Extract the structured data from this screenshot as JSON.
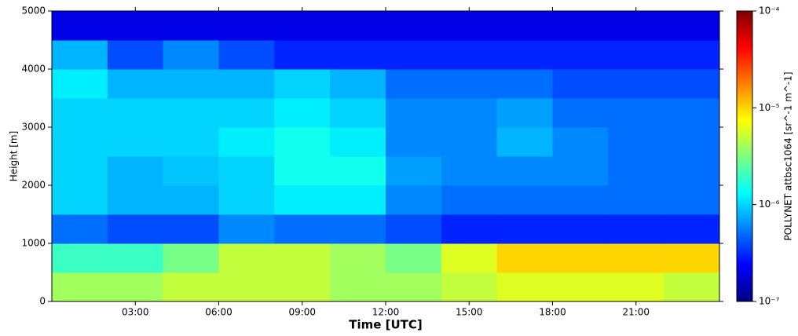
{
  "chart_data": {
    "type": "heatmap",
    "xlabel": "Time [UTC]",
    "ylabel": "Height [m]",
    "colorbar_label": "POLLYNET attbsc1064 [sr^-1 m^-1]",
    "xlim": [
      0,
      24
    ],
    "xticks": [
      {
        "value": 3,
        "label": "03:00"
      },
      {
        "value": 6,
        "label": "06:00"
      },
      {
        "value": 9,
        "label": "09:00"
      },
      {
        "value": 12,
        "label": "12:00"
      },
      {
        "value": 15,
        "label": "15:00"
      },
      {
        "value": 18,
        "label": "18:00"
      },
      {
        "value": 21,
        "label": "21:00"
      }
    ],
    "ylim": [
      0,
      5000
    ],
    "yticks": [
      0,
      1000,
      2000,
      3000,
      4000,
      5000
    ],
    "clim": [
      1e-07,
      0.0001
    ],
    "clog": true,
    "cticks": [
      {
        "value": 1e-07,
        "label": "10⁻⁷"
      },
      {
        "value": 1e-06,
        "label": "10⁻⁶"
      },
      {
        "value": 1e-05,
        "label": "10⁻⁵"
      },
      {
        "value": 0.0001,
        "label": "10⁻⁴"
      }
    ],
    "colormap": "jet",
    "xbins": [
      0,
      2,
      4,
      6,
      8,
      10,
      12,
      14,
      16,
      18,
      20,
      22,
      24
    ],
    "ybins": [
      0,
      500,
      1000,
      1500,
      2000,
      2500,
      3000,
      3500,
      4000,
      4500,
      5000
    ],
    "values": [
      [
        4e-06,
        4e-06,
        5e-06,
        5e-06,
        5e-06,
        4e-06,
        4e-06,
        5e-06,
        6e-06,
        6e-06,
        6e-06,
        5e-06
      ],
      [
        2e-06,
        2e-06,
        3e-06,
        5e-06,
        5e-06,
        4e-06,
        3e-06,
        6e-06,
        1e-05,
        1e-05,
        1e-05,
        1e-05
      ],
      [
        5e-07,
        4e-07,
        4e-07,
        6e-07,
        5e-07,
        5e-07,
        4e-07,
        3e-07,
        3e-07,
        3e-07,
        3e-07,
        3e-07
      ],
      [
        1e-06,
        8e-07,
        8e-07,
        1e-06,
        1.2e-06,
        1.2e-06,
        6e-07,
        5e-07,
        5e-07,
        5e-07,
        5e-07,
        5e-07
      ],
      [
        1e-06,
        8e-07,
        9e-07,
        1e-06,
        1.5e-06,
        1.5e-06,
        7e-07,
        6e-07,
        6e-07,
        6e-07,
        5e-07,
        5e-07
      ],
      [
        1e-06,
        1e-06,
        1e-06,
        1.2e-06,
        1.5e-06,
        1.2e-06,
        6e-07,
        6e-07,
        8e-07,
        6e-07,
        5e-07,
        5e-07
      ],
      [
        1e-06,
        1e-06,
        1e-06,
        1e-06,
        1.2e-06,
        1e-06,
        6e-07,
        6e-07,
        7e-07,
        5e-07,
        5e-07,
        5e-07
      ],
      [
        1.2e-06,
        8e-07,
        8e-07,
        8e-07,
        1e-06,
        8e-07,
        5e-07,
        5e-07,
        5e-07,
        4e-07,
        4e-07,
        4e-07
      ],
      [
        8e-07,
        4e-07,
        6e-07,
        4e-07,
        3e-07,
        3e-07,
        3e-07,
        3e-07,
        3e-07,
        3e-07,
        3e-07,
        3e-07
      ],
      [
        2e-07,
        2e-07,
        2e-07,
        2e-07,
        2e-07,
        2e-07,
        2e-07,
        2e-07,
        2e-07,
        2e-07,
        2e-07,
        2e-07
      ]
    ]
  }
}
